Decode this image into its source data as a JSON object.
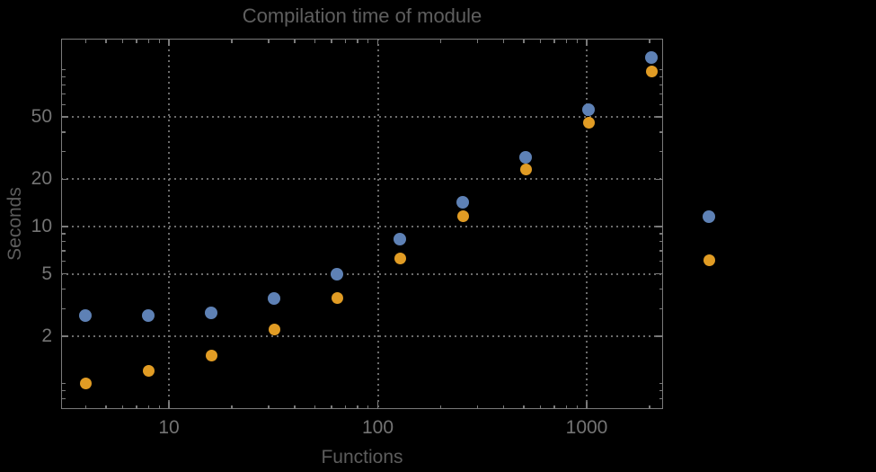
{
  "chart_data": {
    "type": "scatter",
    "title": "Compilation time of module",
    "xlabel": "Functions",
    "ylabel": "Seconds",
    "x_scale": "log",
    "y_scale": "log",
    "x_range": [
      3.05,
      2340
    ],
    "y_range": [
      0.69,
      158
    ],
    "grid": "dotted gridlines at labeled ticks only",
    "x_ticks": {
      "labeled": [
        10,
        100,
        1000
      ],
      "labels": [
        "10",
        "100",
        "1000"
      ],
      "minor": [
        4,
        5,
        6,
        7,
        8,
        9,
        20,
        30,
        40,
        50,
        60,
        70,
        80,
        90,
        200,
        300,
        400,
        500,
        600,
        700,
        800,
        900,
        2000
      ]
    },
    "y_ticks": {
      "labeled": [
        2,
        5,
        10,
        20,
        50
      ],
      "labels": [
        "2",
        "5",
        "10",
        "20",
        "50"
      ],
      "minor": [
        0.7,
        0.8,
        0.9,
        1,
        3,
        4,
        6,
        7,
        8,
        9,
        30,
        40,
        60,
        70,
        80,
        90,
        100
      ]
    },
    "x": [
      4,
      8,
      16,
      32,
      64,
      128,
      256,
      512,
      1024,
      2048
    ],
    "series": [
      {
        "name": "series-1-blue",
        "color": "#5e81b5",
        "marker_size": 14,
        "values": [
          2.7,
          2.7,
          2.8,
          3.5,
          5.0,
          8.3,
          14.3,
          27.5,
          55.5,
          119
        ]
      },
      {
        "name": "series-2-orange",
        "color": "#e19c24",
        "marker_size": 13,
        "values": [
          1.0,
          1.2,
          1.5,
          2.2,
          3.5,
          6.3,
          11.7,
          23,
          46,
          98
        ]
      }
    ],
    "legend": {
      "position": "outside-right",
      "labels_visible": false,
      "markers": [
        {
          "color": "#5e81b5"
        },
        {
          "color": "#e19c24"
        }
      ]
    }
  },
  "colors": {
    "background": "#000000",
    "frame": "#7a7a7a",
    "grid": "#6b6b6b",
    "title_text": "#5f5f5f",
    "axis_label_text": "#5d5d5d",
    "tick_label_text": "#747474"
  }
}
